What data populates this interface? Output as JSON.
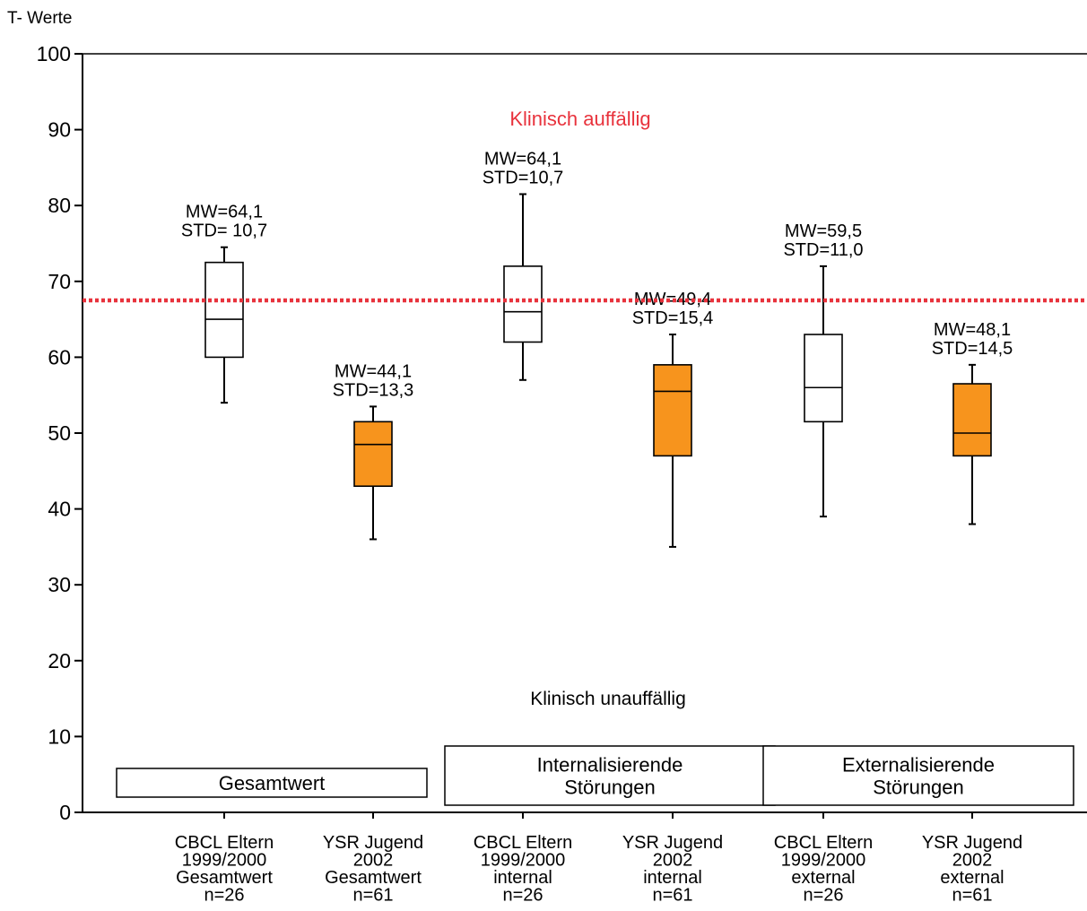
{
  "chart_data": {
    "type": "box",
    "ylabel": "T- Werte",
    "ylim": [
      0,
      100
    ],
    "yticks": [
      0,
      10,
      20,
      30,
      40,
      50,
      60,
      70,
      80,
      90,
      100
    ],
    "grid": false,
    "threshold": {
      "value": 67.5,
      "color": "#e8323c",
      "style": "dotted"
    },
    "region_labels": {
      "above": "Klinisch auffällig",
      "below": "Klinisch unauffällig"
    },
    "groups": [
      {
        "label_lines": [
          "Gesamtwert"
        ]
      },
      {
        "label_lines": [
          "Internalisierende",
          "Störungen"
        ]
      },
      {
        "label_lines": [
          "Externalisierende",
          "Störungen"
        ]
      }
    ],
    "categories": [
      {
        "label_lines": [
          "CBCL Eltern",
          "1999/2000",
          "Gesamtwert",
          "n=26"
        ],
        "group": 0
      },
      {
        "label_lines": [
          "YSR Jugend",
          "2002",
          "Gesamtwert",
          "n=61"
        ],
        "group": 0
      },
      {
        "label_lines": [
          "CBCL Eltern",
          "1999/2000",
          "internal",
          "n=26"
        ],
        "group": 1
      },
      {
        "label_lines": [
          "YSR Jugend",
          "2002",
          "internal",
          "n=61"
        ],
        "group": 1
      },
      {
        "label_lines": [
          "CBCL Eltern",
          "1999/2000",
          "external",
          "n=26"
        ],
        "group": 2
      },
      {
        "label_lines": [
          "YSR Jugend",
          "2002",
          "external",
          "n=61"
        ],
        "group": 2
      }
    ],
    "series": [
      {
        "category": 0,
        "fill": "#ffffff",
        "min": 54,
        "q1": 60,
        "median": 65,
        "q3": 72.5,
        "max": 74.5,
        "annotation_lines": [
          "MW=64,1",
          "STD= 10,7"
        ]
      },
      {
        "category": 1,
        "fill": "#f7941d",
        "min": 36,
        "q1": 43,
        "median": 48.5,
        "q3": 51.5,
        "max": 53.5,
        "annotation_lines": [
          "MW=44,1",
          "STD=13,3"
        ]
      },
      {
        "category": 2,
        "fill": "#ffffff",
        "min": 57,
        "q1": 62,
        "median": 66,
        "q3": 72,
        "max": 81.5,
        "annotation_lines": [
          "MW=64,1",
          "STD=10,7"
        ]
      },
      {
        "category": 3,
        "fill": "#f7941d",
        "min": 35,
        "q1": 47,
        "median": 55.5,
        "q3": 59,
        "max": 63,
        "annotation_lines": [
          "MW=49,4",
          "STD=15,4"
        ]
      },
      {
        "category": 4,
        "fill": "#ffffff",
        "min": 39,
        "q1": 51.5,
        "median": 56,
        "q3": 63,
        "max": 72,
        "annotation_lines": [
          "MW=59,5",
          "STD=11,0"
        ]
      },
      {
        "category": 5,
        "fill": "#f7941d",
        "min": 38,
        "q1": 47,
        "median": 50,
        "q3": 56.5,
        "max": 59,
        "annotation_lines": [
          "MW=48,1",
          "STD=14,5"
        ]
      }
    ]
  }
}
